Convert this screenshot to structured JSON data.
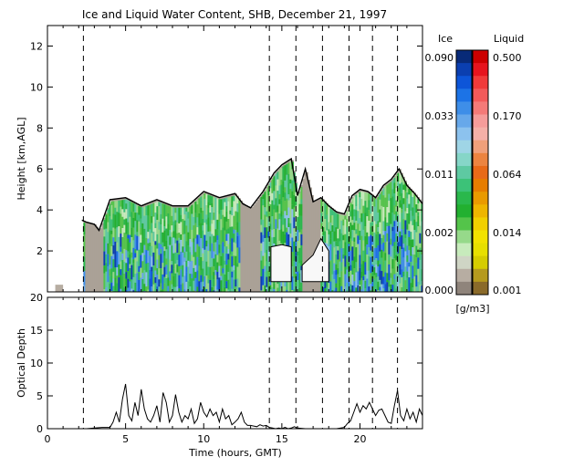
{
  "title": "Ice and Liquid Water Content, SHB, December 21, 1997",
  "colors": {
    "ice": [
      "#082a78",
      "#0b3fb0",
      "#0d55d8",
      "#1c73e6",
      "#3e8ee8",
      "#67a8ea",
      "#8cc2ee",
      "#9fd5e6",
      "#86d6c8",
      "#5ec9a2",
      "#3cc278",
      "#2ab84c",
      "#22b030",
      "#54c44a",
      "#96d98a",
      "#c7ebbc",
      "#cfd5c5",
      "#b7ada2",
      "#8f847b"
    ],
    "liquid": [
      "#cc0000",
      "#e6141e",
      "#f03a3a",
      "#f25a5a",
      "#f47a78",
      "#f59c9a",
      "#f4b0a8",
      "#f0a07a",
      "#ec8440",
      "#e86a18",
      "#e67d00",
      "#e99a00",
      "#eeb500",
      "#f1cf00",
      "#f2e200",
      "#e7df00",
      "#d5cc00",
      "#b59a1e",
      "#8a6a2a"
    ],
    "cloud_liquid_fill": "#aaa197",
    "cloud_bright": "#f8f8f8"
  },
  "colorbar": {
    "ice_header": "Ice",
    "liquid_header": "Liquid",
    "ice_ticks": [
      "0.090",
      "0.033",
      "0.011",
      "0.002",
      "0.000"
    ],
    "liquid_ticks": [
      "0.500",
      "0.170",
      "0.064",
      "0.014",
      "0.001"
    ],
    "unit": "[g/m3]"
  },
  "chart_data": [
    {
      "type": "heatmap",
      "title": "Ice and Liquid Water Content, SHB, December 21, 1997",
      "xlabel": "",
      "ylabel": "Height [km,AGL]",
      "xlim": [
        0,
        24
      ],
      "ylim": [
        0,
        13
      ],
      "y_ticks": [
        2,
        4,
        6,
        8,
        10,
        12
      ],
      "dashed_lines_x_hours": [
        2.3,
        14.2,
        15.9,
        17.6,
        19.3,
        20.8,
        22.4
      ],
      "cloud_top_km": {
        "x": [
          0.6,
          1.0,
          2.2,
          2.5,
          3.0,
          3.3,
          4.0,
          5.0,
          6.0,
          7.0,
          8.0,
          9.0,
          10.0,
          11.0,
          12.0,
          12.5,
          13.0,
          13.8,
          14.5,
          15.0,
          15.6,
          16.0,
          16.5,
          17.0,
          17.5,
          18.0,
          18.5,
          19.0,
          19.5,
          20.0,
          20.5,
          21.0,
          21.5,
          22.0,
          22.5,
          23.0,
          23.5,
          24.0
        ],
        "y": [
          0.3,
          0.3,
          3.5,
          3.4,
          3.3,
          3.0,
          4.5,
          4.6,
          4.2,
          4.5,
          4.2,
          4.2,
          4.9,
          4.6,
          4.8,
          4.3,
          4.1,
          4.9,
          5.8,
          6.2,
          6.5,
          4.7,
          6.0,
          4.4,
          4.6,
          4.2,
          3.9,
          3.8,
          4.7,
          5.0,
          4.9,
          4.6,
          5.2,
          5.5,
          6.0,
          5.2,
          4.8,
          4.3
        ]
      },
      "cloud_base_km": {
        "x": [
          0.6,
          1.0,
          2.2,
          3.0,
          3.3,
          4.0,
          24.0
        ],
        "y": [
          0.0,
          0.0,
          0.0,
          0.0,
          0.0,
          0.0,
          0.0
        ]
      },
      "clear_gap_km": [
        {
          "x": [
            14.3,
            15.0,
            15.6
          ],
          "y": [
            2.2,
            2.3,
            2.2
          ]
        },
        {
          "x": [
            16.3,
            17.0,
            17.5,
            18.0
          ],
          "y": [
            1.3,
            1.8,
            2.6,
            2.0
          ]
        }
      ]
    },
    {
      "type": "line",
      "xlabel": "Time (hours, GMT)",
      "ylabel": "Optical Depth",
      "xlim": [
        0,
        24
      ],
      "ylim": [
        0,
        20
      ],
      "x_ticks": [
        0,
        5,
        10,
        15,
        20
      ],
      "y_ticks": [
        0,
        5,
        10,
        15,
        20
      ],
      "dashed_lines_x_hours": [
        2.3,
        14.2,
        15.9,
        17.6,
        19.3,
        20.8,
        22.4
      ],
      "series": [
        {
          "x": [
            0.0,
            0.5,
            1.0,
            1.5,
            2.0,
            2.5,
            3.0,
            3.5,
            4.0,
            4.2,
            4.4,
            4.6,
            4.8,
            5.0,
            5.2,
            5.4,
            5.6,
            5.8,
            6.0,
            6.2,
            6.4,
            6.6,
            6.8,
            7.0,
            7.2,
            7.4,
            7.6,
            7.8,
            8.0,
            8.2,
            8.4,
            8.6,
            8.8,
            9.0,
            9.2,
            9.4,
            9.6,
            9.8,
            10.0,
            10.2,
            10.4,
            10.6,
            10.8,
            11.0,
            11.2,
            11.4,
            11.6,
            11.8,
            12.0,
            12.2,
            12.4,
            12.6,
            12.8,
            13.0,
            13.2,
            13.4,
            13.6,
            13.8,
            14.0,
            14.2,
            14.4,
            14.6,
            14.8,
            15.0,
            15.2,
            15.4,
            15.6,
            15.8,
            16.0,
            16.5,
            17.0,
            17.5,
            18.0,
            18.5,
            19.0,
            19.2,
            19.4,
            19.6,
            19.8,
            20.0,
            20.2,
            20.4,
            20.6,
            20.8,
            21.0,
            21.2,
            21.4,
            21.6,
            21.8,
            22.0,
            22.2,
            22.4,
            22.6,
            22.8,
            23.0,
            23.2,
            23.4,
            23.6,
            23.8,
            24.0
          ],
          "y": [
            0,
            0,
            0,
            0,
            0,
            0,
            0.1,
            0.2,
            0.2,
            1.0,
            2.5,
            1.0,
            4.5,
            6.8,
            2.0,
            1.2,
            4.0,
            2.0,
            6.0,
            3.0,
            1.5,
            1.0,
            2.0,
            3.5,
            1.0,
            5.5,
            4.0,
            1.0,
            2.0,
            5.2,
            2.5,
            1.0,
            2.0,
            1.5,
            3.0,
            0.8,
            1.5,
            4.0,
            2.5,
            1.8,
            3.0,
            2.0,
            2.5,
            1.0,
            3.0,
            1.5,
            2.0,
            0.6,
            1.0,
            1.5,
            2.5,
            1.0,
            0.5,
            0.5,
            0.4,
            0.3,
            0.6,
            0.4,
            0.5,
            0.2,
            0.1,
            0.0,
            0.1,
            0.0,
            0.2,
            0.0,
            0.1,
            0.3,
            0.1,
            0.0,
            0.0,
            0.0,
            0.0,
            0.0,
            0.2,
            0.8,
            1.2,
            2.5,
            3.8,
            2.5,
            3.5,
            3.0,
            4.0,
            3.0,
            2.0,
            2.8,
            3.0,
            2.0,
            1.0,
            0.8,
            3.5,
            5.8,
            2.0,
            1.2,
            3.0,
            1.5,
            2.5,
            1.0,
            3.0,
            2.0
          ]
        }
      ]
    }
  ]
}
